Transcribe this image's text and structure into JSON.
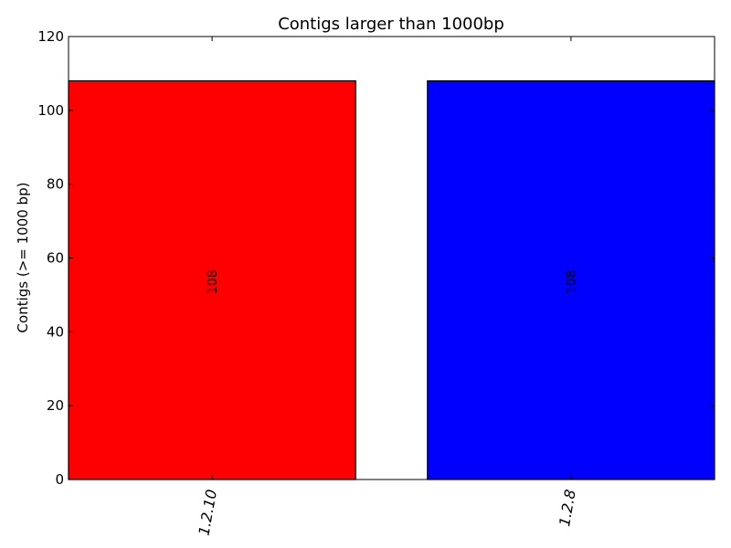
{
  "chart_data": {
    "type": "bar",
    "title": "Contigs larger than 1000bp",
    "xlabel": "",
    "ylabel": "Contigs (>= 1000 bp)",
    "ylim": [
      0,
      120
    ],
    "yticks": [
      0,
      20,
      40,
      60,
      80,
      100,
      120
    ],
    "categories": [
      "1.2.10",
      "1.2.8"
    ],
    "values": [
      108,
      108
    ],
    "bar_colors": [
      "#ff0000",
      "#0000ff"
    ],
    "data_labels": [
      "108",
      "108"
    ],
    "grid": false,
    "legend": "none"
  }
}
